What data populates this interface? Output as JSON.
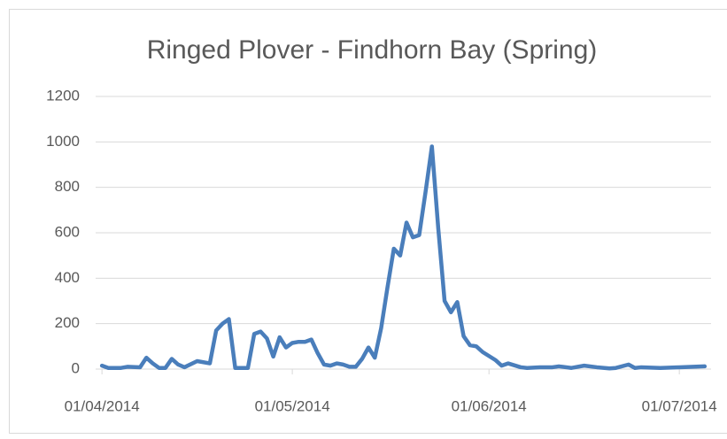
{
  "chart_data": {
    "type": "line",
    "title": "Ringed Plover - Findhorn Bay (Spring)",
    "x": [
      "01/04/2014",
      "02/04/2014",
      "04/04/2014",
      "05/04/2014",
      "07/04/2014",
      "08/04/2014",
      "09/04/2014",
      "10/04/2014",
      "11/04/2014",
      "12/04/2014",
      "13/04/2014",
      "14/04/2014",
      "16/04/2014",
      "18/04/2014",
      "19/04/2014",
      "20/04/2014",
      "21/04/2014",
      "22/04/2014",
      "24/04/2014",
      "25/04/2014",
      "26/04/2014",
      "27/04/2014",
      "28/04/2014",
      "29/04/2014",
      "30/04/2014",
      "01/05/2014",
      "02/05/2014",
      "03/05/2014",
      "04/05/2014",
      "05/05/2014",
      "06/05/2014",
      "07/05/2014",
      "08/05/2014",
      "09/05/2014",
      "10/05/2014",
      "11/05/2014",
      "12/05/2014",
      "13/05/2014",
      "14/05/2014",
      "15/05/2014",
      "16/05/2014",
      "17/05/2014",
      "18/05/2014",
      "19/05/2014",
      "20/05/2014",
      "21/05/2014",
      "22/05/2014",
      "23/05/2014",
      "24/05/2014",
      "25/05/2014",
      "26/05/2014",
      "27/05/2014",
      "28/05/2014",
      "29/05/2014",
      "30/05/2014",
      "31/05/2014",
      "02/06/2014",
      "03/06/2014",
      "04/06/2014",
      "06/06/2014",
      "07/06/2014",
      "09/06/2014",
      "11/06/2014",
      "12/06/2014",
      "14/06/2014",
      "16/06/2014",
      "18/06/2014",
      "20/06/2014",
      "21/06/2014",
      "23/06/2014",
      "24/06/2014",
      "25/06/2014",
      "28/06/2014",
      "01/07/2014",
      "05/07/2014"
    ],
    "series": [
      {
        "name": "Ringed Plover",
        "color": "#4a7ebb",
        "values": [
          15,
          5,
          5,
          10,
          8,
          50,
          25,
          5,
          5,
          45,
          20,
          8,
          35,
          25,
          170,
          200,
          220,
          5,
          5,
          155,
          165,
          135,
          55,
          140,
          95,
          115,
          120,
          120,
          130,
          70,
          20,
          15,
          25,
          20,
          10,
          10,
          45,
          95,
          50,
          180,
          360,
          530,
          500,
          645,
          580,
          590,
          780,
          980,
          620,
          300,
          250,
          295,
          145,
          105,
          100,
          75,
          40,
          15,
          25,
          8,
          5,
          8,
          8,
          12,
          5,
          15,
          8,
          3,
          5,
          20,
          5,
          8,
          5,
          8,
          12
        ]
      }
    ],
    "xlim": [
      "31/03/2014",
      "06/07/2014"
    ],
    "xticks": [
      "01/04/2014",
      "01/05/2014",
      "01/06/2014",
      "01/07/2014"
    ],
    "ylim": [
      0,
      1200
    ],
    "yticks": [
      0,
      200,
      400,
      600,
      800,
      1000,
      1200
    ],
    "grid": true
  }
}
